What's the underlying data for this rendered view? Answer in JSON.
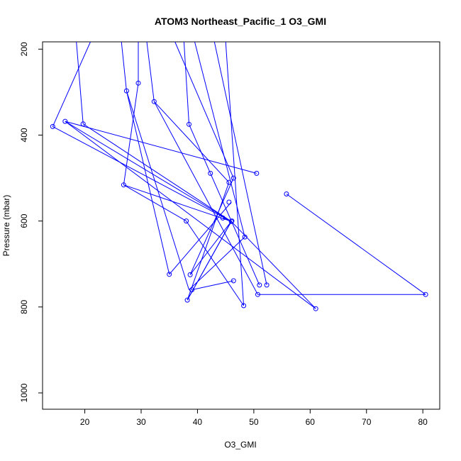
{
  "chart_data": {
    "type": "line",
    "title": "ATOM3 Northeast_Pacific_1 O3_GMI",
    "xlabel": "O3_GMI",
    "ylabel": "Pressure (mbar)",
    "xlim": [
      12.5,
      83.0
    ],
    "ylim": [
      1038,
      183
    ],
    "y_reversed": true,
    "grid": false,
    "xticks": [
      20,
      30,
      40,
      50,
      60,
      70,
      80
    ],
    "xtick_labels": [
      "20",
      "30",
      "40",
      "50",
      "60",
      "70",
      "80"
    ],
    "yticks": [
      200,
      400,
      600,
      800,
      1000
    ],
    "ytick_labels": [
      "200",
      "400",
      "600",
      "800",
      "1000"
    ],
    "color": "#0000ff",
    "lines": [
      [
        [
          18.5,
          183
        ],
        [
          19.7,
          374
        ]
      ],
      [
        [
          19.7,
          374
        ],
        [
          46.0,
          601
        ]
      ],
      [
        [
          21.0,
          183
        ],
        [
          14.3,
          380
        ]
      ],
      [
        [
          14.3,
          380
        ],
        [
          46.0,
          601
        ]
      ],
      [
        [
          16.5,
          368
        ],
        [
          50.5,
          489
        ]
      ],
      [
        [
          16.5,
          368
        ],
        [
          61.0,
          804
        ]
      ],
      [
        [
          26.5,
          183
        ],
        [
          27.4,
          297
        ]
      ],
      [
        [
          27.4,
          297
        ],
        [
          35.0,
          724
        ]
      ],
      [
        [
          35.0,
          724
        ],
        [
          46.0,
          556
        ]
      ],
      [
        [
          29.5,
          183
        ],
        [
          29.5,
          279
        ]
      ],
      [
        [
          29.5,
          279
        ],
        [
          26.9,
          516
        ]
      ],
      [
        [
          26.9,
          516
        ],
        [
          46.0,
          601
        ]
      ],
      [
        [
          27.4,
          297
        ],
        [
          38.5,
          760
        ]
      ],
      [
        [
          31.0,
          183
        ],
        [
          32.3,
          322
        ]
      ],
      [
        [
          32.3,
          322
        ],
        [
          45.6,
          510
        ]
      ],
      [
        [
          45.6,
          510
        ],
        [
          38.2,
          784
        ]
      ],
      [
        [
          38.2,
          784
        ],
        [
          46.0,
          601
        ]
      ],
      [
        [
          36.0,
          183
        ],
        [
          46.4,
          500
        ]
      ],
      [
        [
          46.4,
          500
        ],
        [
          38.7,
          725
        ]
      ],
      [
        [
          38.7,
          725
        ],
        [
          46.0,
          601
        ]
      ],
      [
        [
          37.6,
          183
        ],
        [
          38.5,
          375
        ]
      ],
      [
        [
          38.5,
          375
        ],
        [
          42.3,
          489
        ]
      ],
      [
        [
          42.3,
          489
        ],
        [
          51.0,
          749
        ]
      ],
      [
        [
          39.5,
          183
        ],
        [
          48.4,
          637
        ]
      ],
      [
        [
          48.4,
          637
        ],
        [
          38.5,
          760
        ]
      ],
      [
        [
          38.2,
          784
        ],
        [
          46.0,
          601
        ]
      ],
      [
        [
          46.0,
          601
        ],
        [
          44.5,
          593
        ]
      ],
      [
        [
          44.5,
          593
        ],
        [
          46.0,
          601
        ]
      ],
      [
        [
          43.0,
          183
        ],
        [
          52.3,
          749
        ]
      ],
      [
        [
          45.0,
          183
        ],
        [
          48.2,
          797
        ]
      ],
      [
        [
          16.5,
          368
        ],
        [
          46.0,
          601
        ]
      ],
      [
        [
          26.9,
          516
        ],
        [
          38.0,
          600
        ]
      ],
      [
        [
          38.0,
          600
        ],
        [
          48.2,
          797
        ]
      ],
      [
        [
          61.0,
          804
        ],
        [
          46.0,
          601
        ]
      ],
      [
        [
          46.4,
          739
        ],
        [
          39.0,
          760
        ]
      ],
      [
        [
          50.7,
          771
        ],
        [
          80.5,
          771
        ]
      ],
      [
        [
          80.5,
          771
        ],
        [
          55.8,
          537
        ]
      ],
      [
        [
          32.3,
          322
        ],
        [
          50.7,
          771
        ]
      ]
    ],
    "points": [
      [
        19.7,
        374
      ],
      [
        14.3,
        380
      ],
      [
        16.5,
        368
      ],
      [
        27.4,
        297
      ],
      [
        29.5,
        279
      ],
      [
        32.3,
        322
      ],
      [
        38.5,
        375
      ],
      [
        26.9,
        516
      ],
      [
        42.3,
        489
      ],
      [
        46.4,
        500
      ],
      [
        45.6,
        510
      ],
      [
        50.5,
        489
      ],
      [
        55.8,
        537
      ],
      [
        45.6,
        556
      ],
      [
        44.5,
        593
      ],
      [
        46.0,
        601
      ],
      [
        46.1,
        600
      ],
      [
        38.0,
        600
      ],
      [
        48.4,
        637
      ],
      [
        35.0,
        724
      ],
      [
        38.7,
        725
      ],
      [
        46.4,
        739
      ],
      [
        51.0,
        749
      ],
      [
        52.3,
        749
      ],
      [
        39.0,
        760
      ],
      [
        38.2,
        784
      ],
      [
        50.7,
        771
      ],
      [
        48.2,
        797
      ],
      [
        61.0,
        804
      ],
      [
        80.5,
        771
      ]
    ]
  }
}
